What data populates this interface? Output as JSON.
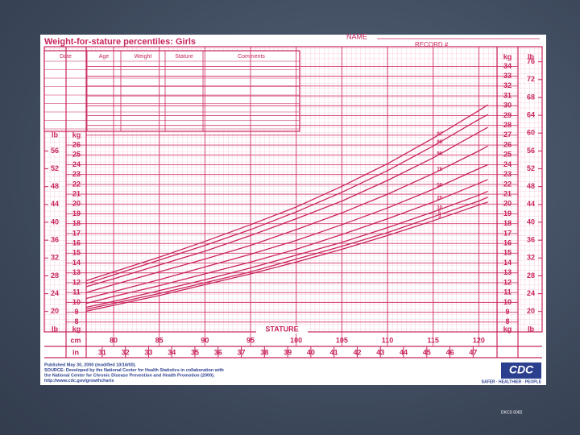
{
  "header": {
    "title": "Weight-for-stature percentiles: Girls",
    "name_label": "NAME",
    "record_label": "RECORD #"
  },
  "table": {
    "columns": [
      "Date",
      "Age",
      "Weight",
      "Stature",
      "Comments"
    ]
  },
  "chart_data": {
    "type": "line",
    "x_label": "STATURE",
    "x_unit": "cm",
    "x2_unit": "in",
    "y_unit": "kg",
    "y3_unit": "lb",
    "x": [
      77,
      80,
      85,
      90,
      95,
      100,
      105,
      110,
      115,
      120,
      121
    ],
    "series": [
      {
        "name": "97",
        "color": "#c8245e",
        "values": [
          12.2,
          13.1,
          14.6,
          16.2,
          17.9,
          19.7,
          21.8,
          24.1,
          26.7,
          29.5,
          30.1
        ]
      },
      {
        "name": "95",
        "color": "#c8245e",
        "values": [
          11.9,
          12.8,
          14.3,
          15.8,
          17.4,
          19.2,
          21.2,
          23.4,
          25.9,
          28.6,
          29.1
        ]
      },
      {
        "name": "90",
        "color": "#c8245e",
        "values": [
          11.6,
          12.4,
          13.8,
          15.2,
          16.8,
          18.5,
          20.3,
          22.4,
          24.7,
          27.3,
          27.8
        ]
      },
      {
        "name": "75",
        "color": "#c8245e",
        "values": [
          11.0,
          11.8,
          13.1,
          14.4,
          15.8,
          17.4,
          19.1,
          21.0,
          23.1,
          25.4,
          25.9
        ]
      },
      {
        "name": "50",
        "color": "#c8245e",
        "values": [
          10.4,
          11.1,
          12.3,
          13.6,
          14.9,
          16.3,
          17.9,
          19.6,
          21.5,
          23.6,
          24.0
        ]
      },
      {
        "name": "25",
        "color": "#c8245e",
        "values": [
          9.9,
          10.6,
          11.7,
          12.9,
          14.1,
          15.4,
          16.9,
          18.5,
          20.2,
          22.1,
          22.5
        ]
      },
      {
        "name": "10",
        "color": "#c8245e",
        "values": [
          9.5,
          10.1,
          11.2,
          12.3,
          13.5,
          14.8,
          16.1,
          17.6,
          19.2,
          20.9,
          21.3
        ]
      },
      {
        "name": "5",
        "color": "#c8245e",
        "values": [
          9.3,
          9.9,
          10.9,
          12.0,
          13.1,
          14.4,
          15.7,
          17.1,
          18.7,
          20.3,
          20.7
        ]
      },
      {
        "name": "3",
        "color": "#c8245e",
        "values": [
          9.1,
          9.7,
          10.7,
          11.8,
          12.9,
          14.1,
          15.4,
          16.8,
          18.3,
          19.9,
          20.2
        ]
      }
    ],
    "xlim": [
      77,
      122
    ],
    "xticks": [
      80,
      85,
      90,
      95,
      100,
      105,
      110,
      115,
      120
    ],
    "x2lim": [
      30.31,
      48.03
    ],
    "x2ticks": [
      31,
      32,
      33,
      34,
      35,
      36,
      37,
      38,
      39,
      40,
      41,
      42,
      43,
      44,
      45,
      46,
      47
    ],
    "ylim": [
      7,
      36
    ],
    "yticks": [
      8,
      9,
      10,
      11,
      12,
      13,
      14,
      15,
      16,
      17,
      18,
      19,
      20,
      21,
      22,
      23,
      24,
      25,
      26
    ],
    "y2lim": [
      7,
      36
    ],
    "y2ticks": [
      8,
      9,
      10,
      11,
      12,
      13,
      14,
      15,
      16,
      17,
      18,
      19,
      20,
      21,
      22,
      23,
      24,
      25,
      26,
      27,
      28,
      29,
      30,
      31,
      32,
      33,
      34
    ],
    "y3lim": [
      15.43,
      79.37
    ],
    "y3ticks_left": [
      20,
      24,
      28,
      32,
      36,
      40,
      44,
      48,
      52,
      56
    ],
    "y3ticks_right": [
      20,
      24,
      28,
      32,
      36,
      40,
      44,
      48,
      52,
      56,
      60,
      64,
      68,
      72,
      76
    ],
    "grid": true,
    "line_color": "#c8245e"
  },
  "footer": {
    "source": [
      "Published May 30, 2000 (modified 10/16/00).",
      "SOURCE: Developed by the National Center for Health Statistics in collaboration with",
      "the National Center for Chronic Disease Prevention and Health Promotion (2000).",
      "http://www.cdc.gov/growthcharts"
    ],
    "logo": "CDC",
    "tagline": "SAFER · HEALTHIER · PEOPLE"
  },
  "slide": {
    "code": "DKCS 5082"
  }
}
